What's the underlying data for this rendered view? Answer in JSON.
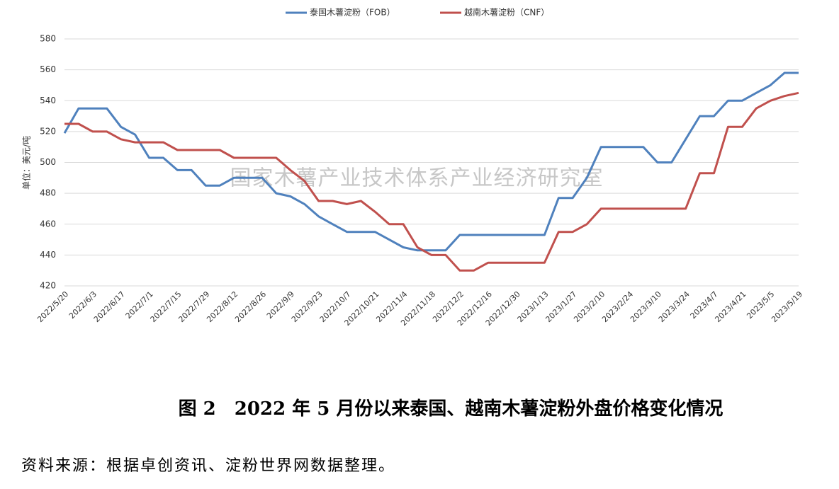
{
  "chart_data": {
    "type": "line",
    "caption": "图 2　2022 年 5 月份以来泰国、越南木薯淀粉外盘价格变化情况",
    "source": "资料来源：根据卓创资讯、淀粉世界网数据整理。",
    "watermark": "国家木薯产业技术体系产业经济研究室",
    "y_label": "单位：美元/吨",
    "categories": [
      "2022/5/20",
      null,
      "2022/6/3",
      null,
      "2022/6/17",
      null,
      "2022/7/1",
      null,
      "2022/7/15",
      null,
      "2022/7/29",
      null,
      "2022/8/12",
      null,
      "2022/8/26",
      null,
      "2022/9/9",
      null,
      "2022/9/23",
      null,
      "2022/10/7",
      null,
      "2022/10/21",
      null,
      "2022/11/4",
      null,
      "2022/11/18",
      null,
      "2022/12/2",
      null,
      "2022/12/16",
      null,
      "2022/12/30",
      null,
      "2023/1/13",
      null,
      "2023/1/27",
      null,
      "2023/2/10",
      null,
      "2023/2/24",
      null,
      "2023/3/10",
      null,
      "2023/3/24",
      null,
      "2023/4/7",
      null,
      "2023/4/21",
      null,
      "2023/5/5",
      null,
      "2023/5/19"
    ],
    "series": [
      {
        "name": "泰国木薯淀粉（FOB）",
        "color": "#4f81bd",
        "values": [
          519,
          535,
          535,
          535,
          523,
          518,
          503,
          503,
          495,
          495,
          485,
          485,
          490,
          490,
          490,
          480,
          478,
          473,
          465,
          460,
          455,
          455,
          455,
          450,
          445,
          443,
          443,
          443,
          453,
          453,
          453,
          453,
          453,
          453,
          453,
          477,
          477,
          490,
          510,
          510,
          510,
          510,
          500,
          500,
          515,
          530,
          530,
          540,
          540,
          545,
          550,
          558,
          558
        ]
      },
      {
        "name": "越南木薯淀粉（CNF）",
        "color": "#c0504d",
        "values": [
          525,
          525,
          520,
          520,
          515,
          513,
          513,
          513,
          508,
          508,
          508,
          508,
          503,
          503,
          503,
          503,
          495,
          488,
          475,
          475,
          473,
          475,
          468,
          460,
          460,
          445,
          440,
          440,
          430,
          430,
          435,
          435,
          435,
          435,
          435,
          455,
          455,
          460,
          470,
          470,
          470,
          470,
          470,
          470,
          470,
          493,
          493,
          523,
          523,
          535,
          540,
          543,
          545
        ]
      }
    ],
    "ylim": [
      420,
      580
    ],
    "yticks": [
      420,
      440,
      460,
      480,
      500,
      520,
      540,
      560,
      580
    ],
    "grid": true
  }
}
